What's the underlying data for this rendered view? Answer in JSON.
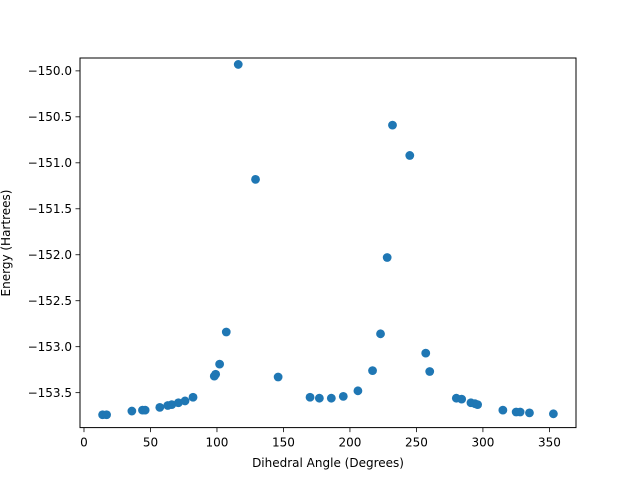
{
  "chart_data": {
    "type": "scatter",
    "title": "",
    "xlabel": "Dihedral Angle (Degrees)",
    "ylabel": "Energy (Hartrees)",
    "xlim": [
      -3,
      370
    ],
    "ylim": [
      -153.88,
      -149.86
    ],
    "x_ticks": [
      0,
      50,
      100,
      150,
      200,
      250,
      300,
      350
    ],
    "x_tick_labels": [
      "0",
      "50",
      "100",
      "150",
      "200",
      "250",
      "300",
      "350"
    ],
    "y_ticks": [
      -150.0,
      -150.5,
      -151.0,
      -151.5,
      -152.0,
      -152.5,
      -153.0,
      -153.5
    ],
    "y_tick_labels": [
      "−150.0",
      "−150.5",
      "−151.0",
      "−151.5",
      "−152.0",
      "−152.5",
      "−153.0",
      "−153.5"
    ],
    "grid": false,
    "legend": "none",
    "marker_color": "#1f77b4",
    "points": [
      {
        "x": 14,
        "y": -153.74
      },
      {
        "x": 17,
        "y": -153.74
      },
      {
        "x": 36,
        "y": -153.7
      },
      {
        "x": 44,
        "y": -153.69
      },
      {
        "x": 46,
        "y": -153.69
      },
      {
        "x": 57,
        "y": -153.66
      },
      {
        "x": 63,
        "y": -153.64
      },
      {
        "x": 66,
        "y": -153.63
      },
      {
        "x": 71,
        "y": -153.61
      },
      {
        "x": 76,
        "y": -153.59
      },
      {
        "x": 82,
        "y": -153.55
      },
      {
        "x": 98,
        "y": -153.32
      },
      {
        "x": 99,
        "y": -153.3
      },
      {
        "x": 102,
        "y": -153.19
      },
      {
        "x": 107,
        "y": -152.84
      },
      {
        "x": 116,
        "y": -149.93
      },
      {
        "x": 129,
        "y": -151.18
      },
      {
        "x": 146,
        "y": -153.33
      },
      {
        "x": 170,
        "y": -153.55
      },
      {
        "x": 177,
        "y": -153.56
      },
      {
        "x": 186,
        "y": -153.56
      },
      {
        "x": 195,
        "y": -153.54
      },
      {
        "x": 206,
        "y": -153.48
      },
      {
        "x": 217,
        "y": -153.26
      },
      {
        "x": 223,
        "y": -152.86
      },
      {
        "x": 228,
        "y": -152.03
      },
      {
        "x": 232,
        "y": -150.59
      },
      {
        "x": 245,
        "y": -150.92
      },
      {
        "x": 257,
        "y": -153.07
      },
      {
        "x": 260,
        "y": -153.27
      },
      {
        "x": 280,
        "y": -153.56
      },
      {
        "x": 284,
        "y": -153.57
      },
      {
        "x": 291,
        "y": -153.61
      },
      {
        "x": 294,
        "y": -153.62
      },
      {
        "x": 296,
        "y": -153.63
      },
      {
        "x": 315,
        "y": -153.69
      },
      {
        "x": 325,
        "y": -153.71
      },
      {
        "x": 328,
        "y": -153.71
      },
      {
        "x": 335,
        "y": -153.72
      },
      {
        "x": 353,
        "y": -153.73
      }
    ]
  }
}
